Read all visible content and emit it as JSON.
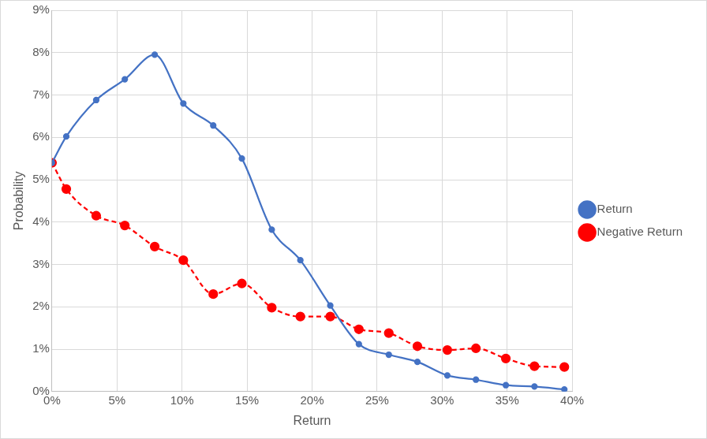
{
  "chart_data": {
    "type": "line",
    "x_label": "Return",
    "y_label": "Probability",
    "x": [
      0,
      1.1,
      3.4,
      5.6,
      7.9,
      10.1,
      12.4,
      14.6,
      16.9,
      19.1,
      21.4,
      23.6,
      25.9,
      28.1,
      30.4,
      32.6,
      34.9,
      37.1,
      39.4
    ],
    "series": [
      {
        "name": "Return",
        "color": "#4472c4",
        "marker": "circle",
        "line_style": "solid",
        "values": [
          5.4,
          6.02,
          6.88,
          7.37,
          7.95,
          6.8,
          6.28,
          5.5,
          3.82,
          3.1,
          2.03,
          1.12,
          0.87,
          0.7,
          0.38,
          0.28,
          0.15,
          0.12,
          0.05
        ]
      },
      {
        "name": "Negative Return",
        "color": "#ff0000",
        "marker": "circle",
        "line_style": "dashed",
        "values": [
          5.4,
          4.78,
          4.15,
          3.92,
          3.42,
          3.1,
          2.3,
          2.55,
          1.98,
          1.77,
          1.77,
          1.47,
          1.38,
          1.07,
          0.98,
          1.02,
          0.78,
          0.6,
          0.58
        ]
      }
    ],
    "xlim": [
      0,
      40
    ],
    "xticks": [
      {
        "value": 0,
        "label": "0%"
      },
      {
        "value": 5,
        "label": "5%"
      },
      {
        "value": 10,
        "label": "10%"
      },
      {
        "value": 15,
        "label": "15%"
      },
      {
        "value": 20,
        "label": "20%"
      },
      {
        "value": 25,
        "label": "25%"
      },
      {
        "value": 30,
        "label": "30%"
      },
      {
        "value": 35,
        "label": "35%"
      },
      {
        "value": 40,
        "label": "40%"
      }
    ],
    "ylim": [
      0,
      9
    ],
    "yticks": [
      {
        "value": 0,
        "label": "0%"
      },
      {
        "value": 1,
        "label": "1%"
      },
      {
        "value": 2,
        "label": "2%"
      },
      {
        "value": 3,
        "label": "3%"
      },
      {
        "value": 4,
        "label": "4%"
      },
      {
        "value": 5,
        "label": "5%"
      },
      {
        "value": 6,
        "label": "6%"
      },
      {
        "value": 7,
        "label": "7%"
      },
      {
        "value": 8,
        "label": "8%"
      },
      {
        "value": 9,
        "label": "9%"
      }
    ],
    "grid": true,
    "legend": "right"
  }
}
